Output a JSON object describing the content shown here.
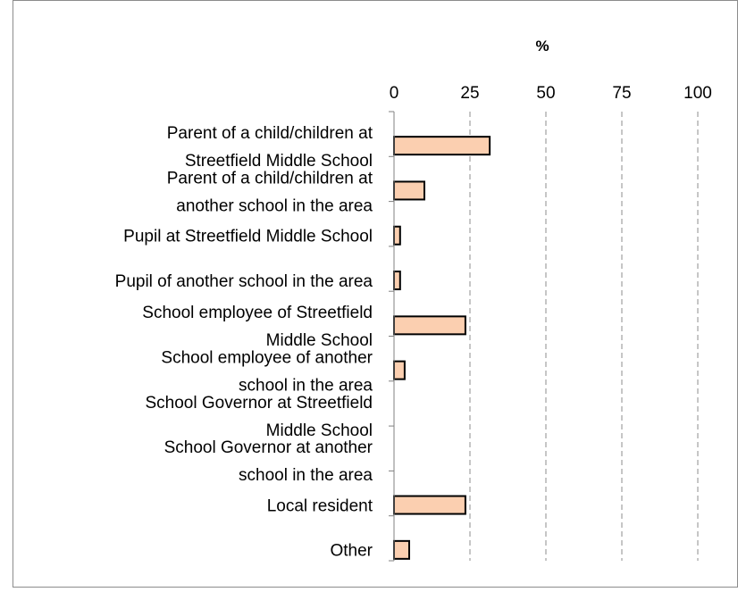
{
  "chart_data": {
    "type": "bar",
    "orientation": "horizontal",
    "title": "",
    "xlabel": "%",
    "ylabel": "",
    "xlim": [
      0,
      100
    ],
    "x_ticks": [
      "0",
      "25",
      "50",
      "75",
      "100"
    ],
    "grid": "vertical-dashed",
    "legend": "none",
    "categories": [
      [
        "Parent of a child/children at",
        "Streetfield Middle School"
      ],
      [
        "Parent of a child/children at",
        "another school in the area"
      ],
      [
        "Pupil at Streetfield Middle School"
      ],
      [
        "Pupil of another school in the area"
      ],
      [
        "School employee of Streetfield",
        "Middle School"
      ],
      [
        "School employee of another",
        "school in the area"
      ],
      [
        "School Governor at Streetfield",
        "Middle School"
      ],
      [
        "School Governor at another",
        "school in the area"
      ],
      [
        "Local resident"
      ],
      [
        "Other"
      ]
    ],
    "values": [
      31.5,
      10,
      2,
      2,
      23.5,
      3.5,
      0,
      0,
      23.5,
      5
    ],
    "bar_color": "#fbcfb0",
    "bar_edge_color": "#000000"
  }
}
